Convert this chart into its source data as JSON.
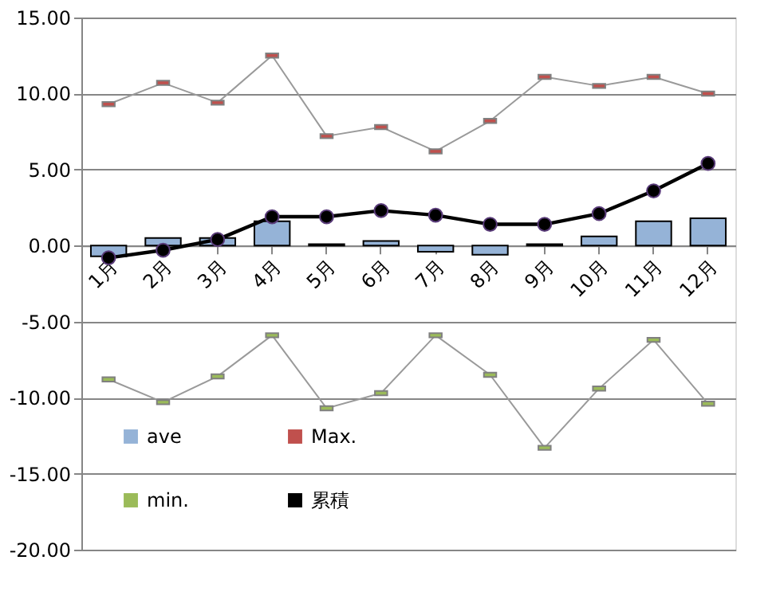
{
  "chart_data": {
    "type": "bar",
    "categories": [
      "1月",
      "2月",
      "3月",
      "4月",
      "5月",
      "6月",
      "7月",
      "8月",
      "9月",
      "10月",
      "11月",
      "12月"
    ],
    "series": [
      {
        "name": "ave",
        "color": "#95b3d7",
        "values": [
          -0.7,
          0.5,
          0.5,
          1.6,
          0.1,
          0.3,
          -0.4,
          -0.6,
          0.1,
          0.6,
          1.6,
          1.8
        ]
      },
      {
        "name": "Max.",
        "type": "line",
        "color": "#c0504d",
        "marker": "square",
        "values": [
          9.3,
          10.7,
          9.4,
          12.5,
          7.2,
          7.8,
          6.2,
          8.2,
          11.1,
          10.5,
          11.1,
          10.0
        ]
      },
      {
        "name": "min.",
        "type": "line",
        "color": "#9bbb59",
        "marker": "square",
        "values": [
          -8.8,
          -10.3,
          -8.6,
          -5.9,
          -10.7,
          -9.7,
          -5.9,
          -8.5,
          -13.3,
          -9.4,
          -6.2,
          -10.4
        ]
      },
      {
        "name": "累積",
        "type": "line",
        "color": "#000000",
        "marker": "circle",
        "values": [
          -0.8,
          -0.3,
          0.4,
          1.9,
          1.9,
          2.3,
          2.0,
          1.4,
          1.4,
          2.1,
          3.6,
          5.4
        ]
      }
    ],
    "ylim": [
      -20,
      15
    ],
    "yticks": [
      {
        "value": -20,
        "label": "-20.00"
      },
      {
        "value": -15,
        "label": "-15.00"
      },
      {
        "value": -10,
        "label": "-10.00"
      },
      {
        "value": -5,
        "label": "-5.00"
      },
      {
        "value": 0,
        "label": "0.00"
      },
      {
        "value": 5,
        "label": "5.00"
      },
      {
        "value": 10,
        "label": "10.00"
      },
      {
        "value": 15,
        "label": "15.00"
      }
    ],
    "grid": "y",
    "legend": "bottom left"
  }
}
